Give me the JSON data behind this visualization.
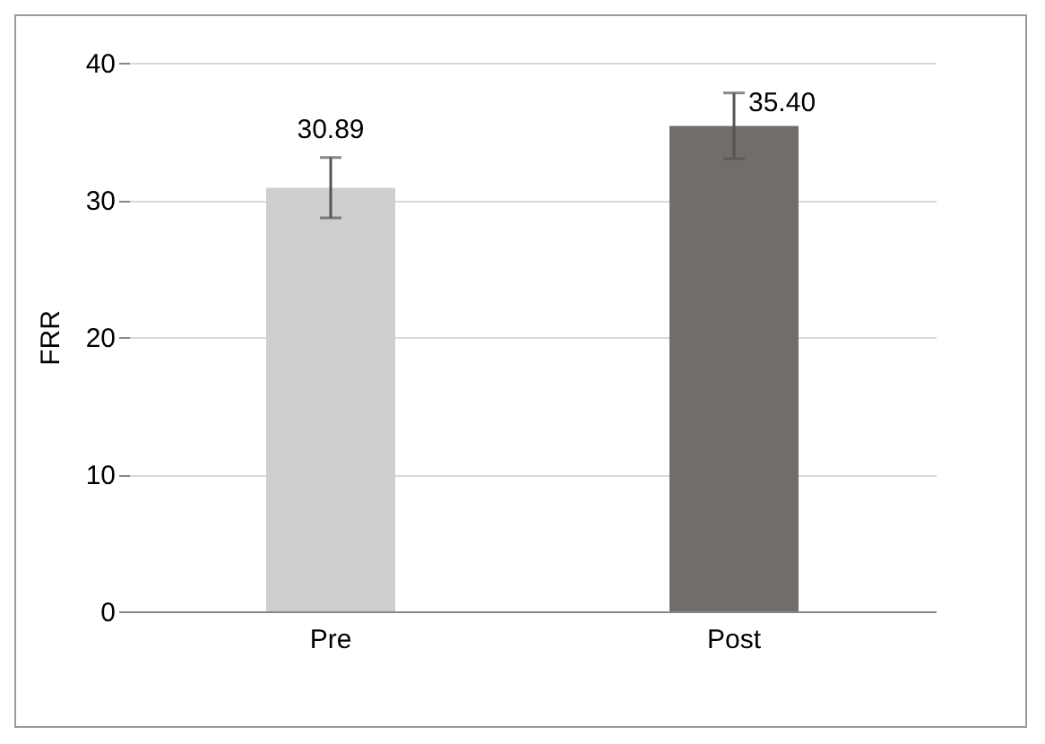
{
  "chart_data": {
    "type": "bar",
    "ylabel": "FRR",
    "categories": [
      "Pre",
      "Post"
    ],
    "values": [
      30.89,
      35.4
    ],
    "colors": [
      "#d0cdcd",
      "#716d6b"
    ],
    "errors": [
      2.2,
      2.4
    ],
    "value_labels": [
      "30.89",
      "35.40"
    ],
    "ylim": [
      0,
      40
    ],
    "yticks": [
      0,
      10,
      20,
      30,
      40
    ],
    "grid": "y"
  }
}
